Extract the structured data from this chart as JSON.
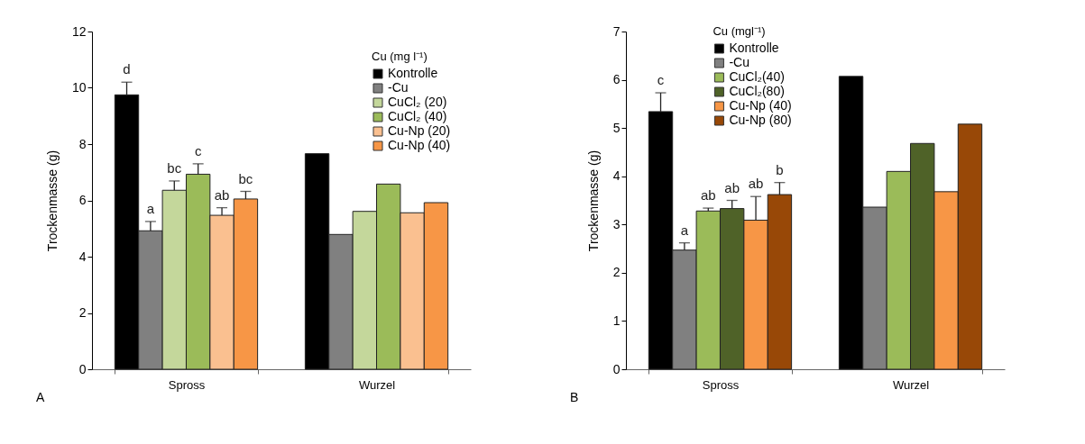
{
  "chart_data": [
    {
      "type": "bar",
      "ylabel": "Trockenmasse (g)",
      "legend_title": "Cu (mg l⁻¹)",
      "legend": "top right",
      "categories": [
        "Spross",
        "Wurzel"
      ],
      "ylim": [
        0,
        12
      ],
      "yticks": [
        0,
        2,
        4,
        6,
        8,
        10,
        12
      ],
      "grid": false,
      "annotations": [
        "A"
      ],
      "series": [
        {
          "name": "Kontrolle",
          "color": "#000000",
          "values": [
            9.75,
            7.66
          ],
          "errors": [
            0.45,
            null
          ],
          "value_labels": [
            "d",
            null
          ]
        },
        {
          "name": "-Cu",
          "color": "#808080",
          "values": [
            4.92,
            4.79
          ],
          "errors": [
            0.33,
            null
          ],
          "value_labels": [
            "a",
            null
          ]
        },
        {
          "name": "CuCl₂ (20)",
          "color": "#c4d79b",
          "values": [
            6.36,
            5.61
          ],
          "errors": [
            0.33,
            null
          ],
          "value_labels": [
            "bc",
            null
          ]
        },
        {
          "name": "CuCl₂ (40)",
          "color": "#9bbb59",
          "values": [
            6.93,
            6.58
          ],
          "errors": [
            0.37,
            null
          ],
          "value_labels": [
            "c",
            null
          ]
        },
        {
          "name": "Cu-Np (20)",
          "color": "#fac090",
          "values": [
            5.47,
            5.56
          ],
          "errors": [
            0.27,
            null
          ],
          "value_labels": [
            "ab",
            null
          ]
        },
        {
          "name": "Cu-Np (40)",
          "color": "#f79646",
          "values": [
            6.05,
            5.92
          ],
          "errors": [
            0.27,
            null
          ],
          "value_labels": [
            "bc",
            null
          ]
        }
      ]
    },
    {
      "type": "bar",
      "ylabel": "Trockenmasse (g)",
      "legend_title": "Cu (mgl⁻¹)",
      "legend": "top",
      "categories": [
        "Spross",
        "Wurzel"
      ],
      "ylim": [
        0,
        7
      ],
      "yticks": [
        0,
        1,
        2,
        3,
        4,
        5,
        6,
        7
      ],
      "grid": false,
      "annotations": [
        "B"
      ],
      "series": [
        {
          "name": "Kontrolle",
          "color": "#000000",
          "values": [
            5.34,
            6.07
          ],
          "errors": [
            0.39,
            null
          ],
          "value_labels": [
            "c",
            null
          ]
        },
        {
          "name": "-Cu",
          "color": "#808080",
          "values": [
            2.47,
            3.36
          ],
          "errors": [
            0.15,
            null
          ],
          "value_labels": [
            "a",
            null
          ]
        },
        {
          "name": "CuCl₂(40)",
          "color": "#9bbb59",
          "values": [
            3.28,
            4.1
          ],
          "errors": [
            0.06,
            null
          ],
          "value_labels": [
            "ab",
            null
          ]
        },
        {
          "name": "CuCl₂(80)",
          "color": "#4f6228",
          "values": [
            3.33,
            4.68
          ],
          "errors": [
            0.17,
            null
          ],
          "value_labels": [
            "ab",
            null
          ]
        },
        {
          "name": "Cu-Np (40)",
          "color": "#f79646",
          "values": [
            3.09,
            3.68
          ],
          "errors": [
            0.49,
            null
          ],
          "value_labels": [
            "ab",
            null
          ]
        },
        {
          "name": "Cu-Np (80)",
          "color": "#984807",
          "values": [
            3.62,
            5.08
          ],
          "errors": [
            0.25,
            null
          ],
          "value_labels": [
            "b",
            null
          ]
        }
      ]
    }
  ]
}
